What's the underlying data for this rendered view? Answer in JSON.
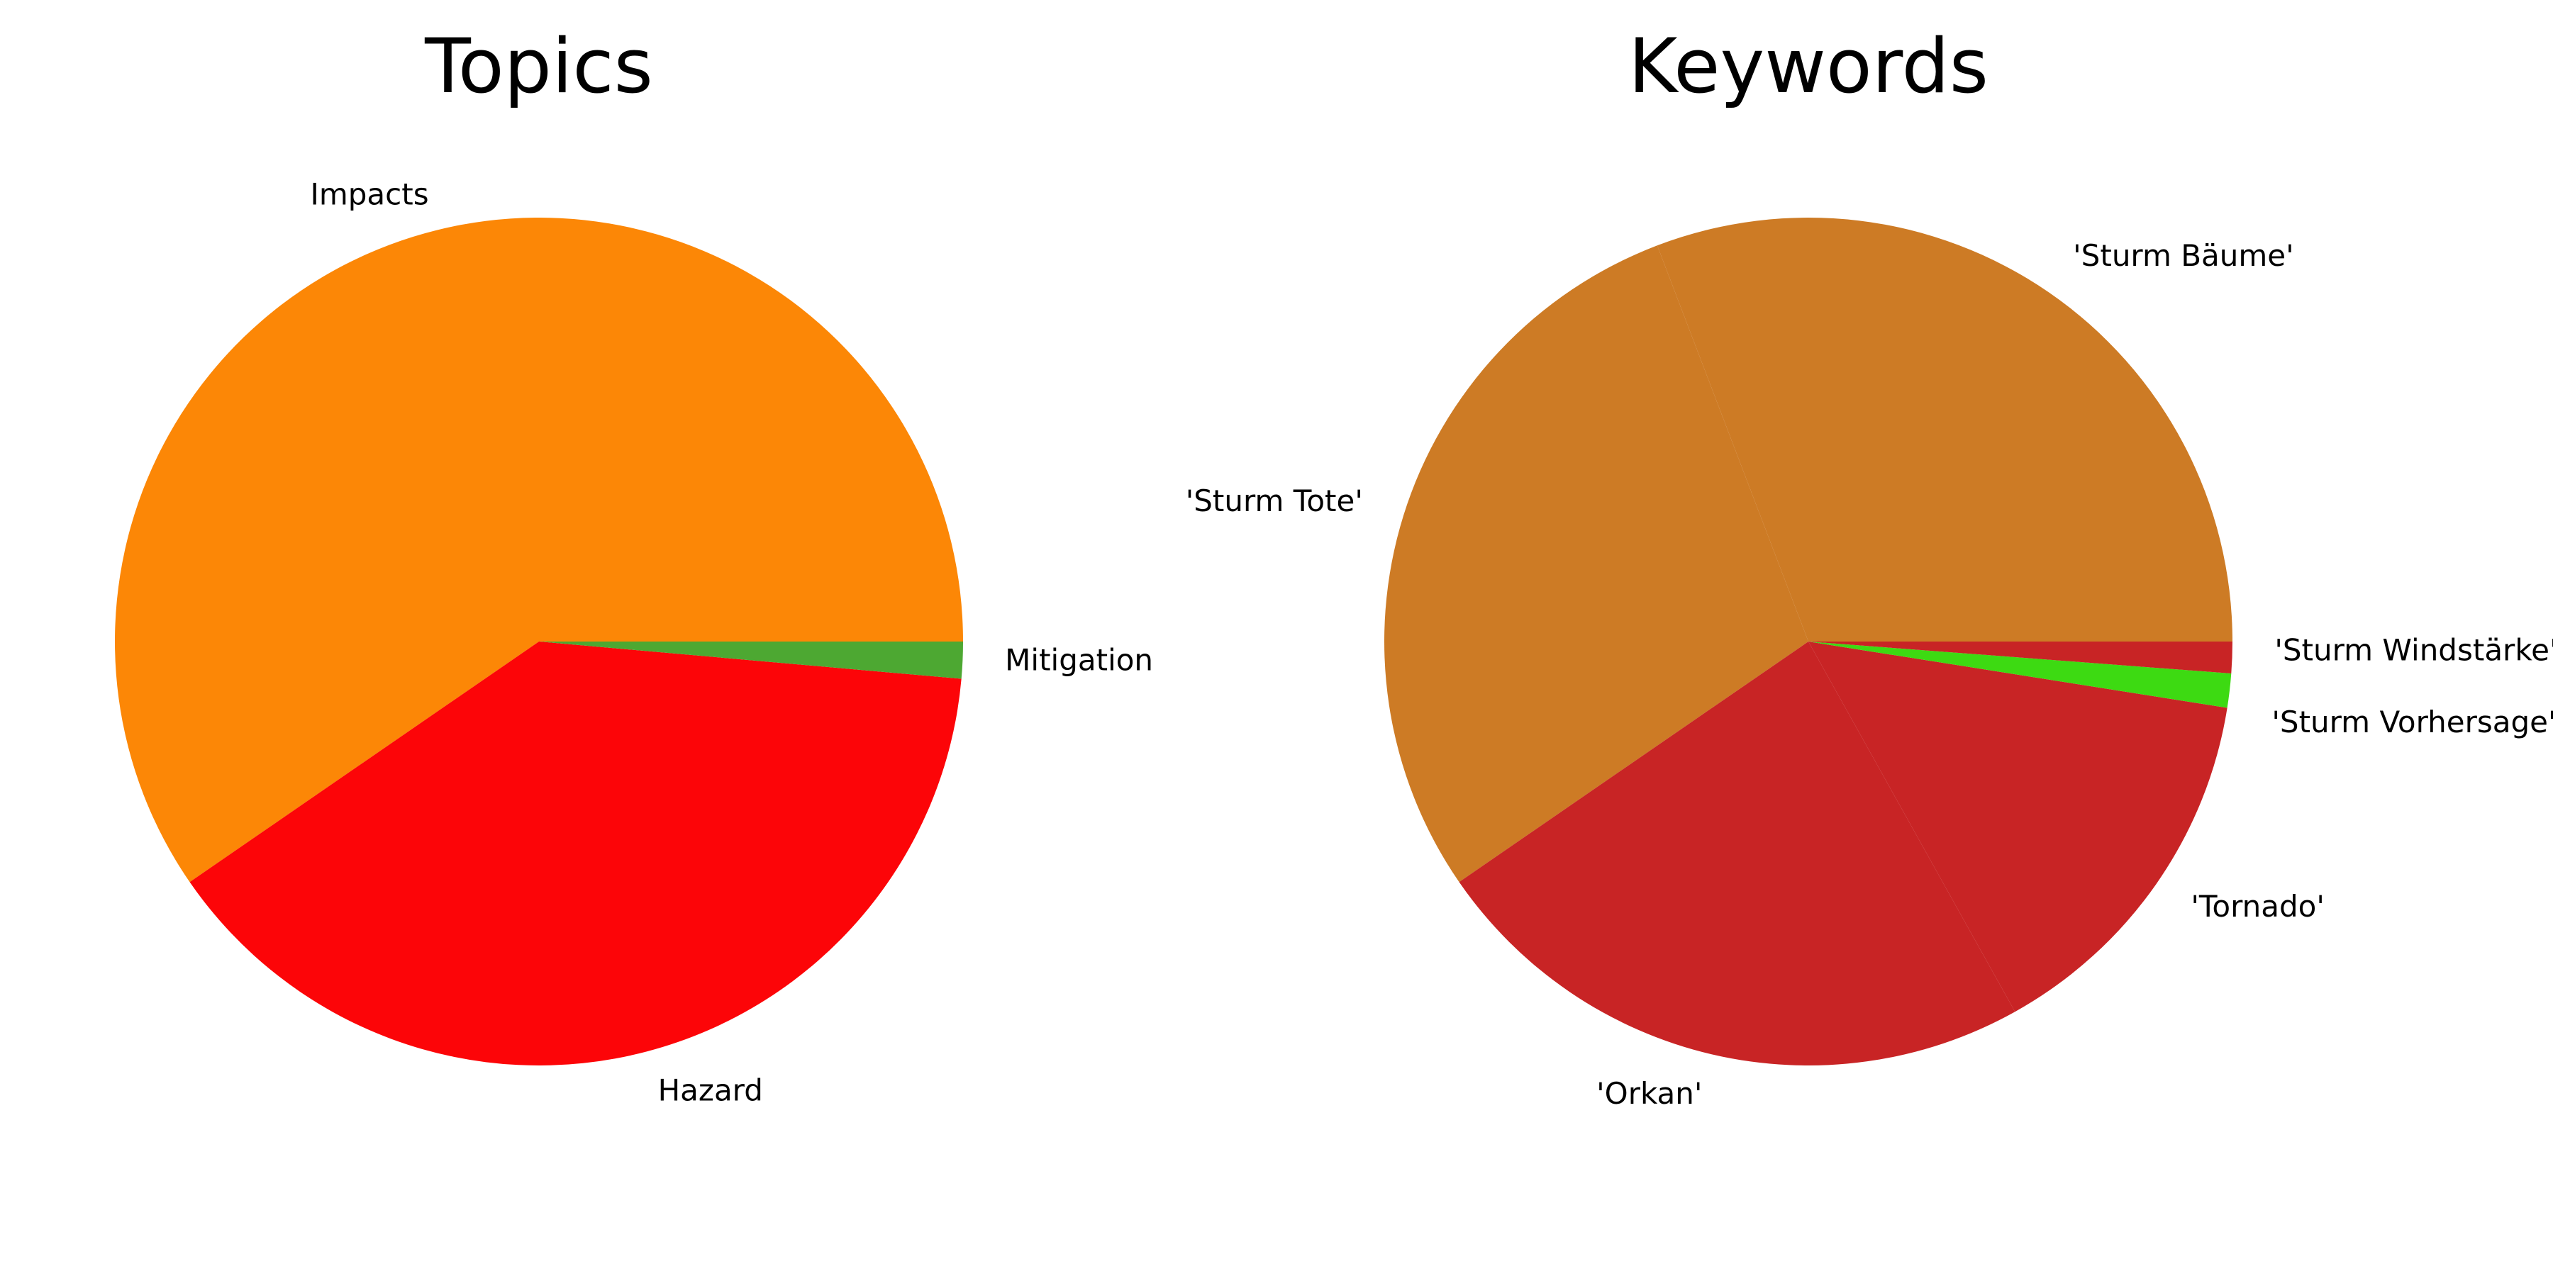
{
  "chart_data": [
    {
      "type": "pie",
      "title": "Topics",
      "start_angle_deg": 0,
      "direction": "counterclockwise",
      "slices": [
        {
          "label": "Impacts",
          "value": 59.6,
          "color": "#fc8706"
        },
        {
          "label": "Hazard",
          "value": 39.0,
          "color": "#fc0508"
        },
        {
          "label": "Mitigation",
          "value": 1.4,
          "color": "#4da832"
        }
      ]
    },
    {
      "type": "pie",
      "title": "Keywords",
      "start_angle_deg": 0,
      "direction": "counterclockwise",
      "slices": [
        {
          "label": "'Sturm Bäume'",
          "value": 30.8,
          "color": "#cd7b25"
        },
        {
          "label": "'Sturm Tote'",
          "value": 28.8,
          "color": "#cd7b25"
        },
        {
          "label": "'Orkan'",
          "value": 23.5,
          "color": "#c82425"
        },
        {
          "label": "'Tornado'",
          "value": 14.4,
          "color": "#c82425"
        },
        {
          "label": "'Sturm Vorhersage'",
          "value": 1.3,
          "color": "#3dda12"
        },
        {
          "label": "'Sturm Windstärke'",
          "value": 1.2,
          "color": "#c82425"
        }
      ]
    }
  ]
}
